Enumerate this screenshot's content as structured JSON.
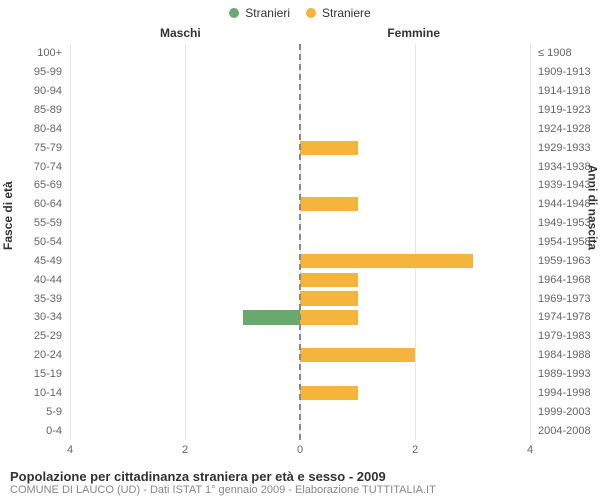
{
  "chart": {
    "type": "population-pyramid-bar",
    "background_color": "#ffffff",
    "grid_color": "#e6e6e6",
    "mid_line_color": "#888888",
    "tick_color": "#666666",
    "text_color": "#333333",
    "subtext_color": "#888888",
    "legend_fontsize": 12,
    "heading_fontsize": 12,
    "axis_title_fontsize": 12,
    "ylabel_fontsize": 11,
    "xtick_fontsize": 11,
    "caption_title_fontsize": 13,
    "caption_sub_fontsize": 11,
    "legend": [
      {
        "label": "Stranieri",
        "color": "#6aa96d"
      },
      {
        "label": "Straniere",
        "color": "#f5b43c"
      }
    ],
    "column_headings": {
      "left": "Maschi",
      "right": "Femmine"
    },
    "axis_titles": {
      "left": "Fasce di età",
      "right": "Anni di nascita"
    },
    "x_max": 4,
    "x_ticks_left": [
      4,
      2,
      0
    ],
    "x_ticks_right": [
      2,
      4
    ],
    "rows": [
      {
        "age": "100+",
        "birth": "≤ 1908",
        "m": 0,
        "f": 0
      },
      {
        "age": "95-99",
        "birth": "1909-1913",
        "m": 0,
        "f": 0
      },
      {
        "age": "90-94",
        "birth": "1914-1918",
        "m": 0,
        "f": 0
      },
      {
        "age": "85-89",
        "birth": "1919-1923",
        "m": 0,
        "f": 0
      },
      {
        "age": "80-84",
        "birth": "1924-1928",
        "m": 0,
        "f": 0
      },
      {
        "age": "75-79",
        "birth": "1929-1933",
        "m": 0,
        "f": 1
      },
      {
        "age": "70-74",
        "birth": "1934-1938",
        "m": 0,
        "f": 0
      },
      {
        "age": "65-69",
        "birth": "1939-1943",
        "m": 0,
        "f": 0
      },
      {
        "age": "60-64",
        "birth": "1944-1948",
        "m": 0,
        "f": 1
      },
      {
        "age": "55-59",
        "birth": "1949-1953",
        "m": 0,
        "f": 0
      },
      {
        "age": "50-54",
        "birth": "1954-1958",
        "m": 0,
        "f": 0
      },
      {
        "age": "45-49",
        "birth": "1959-1963",
        "m": 0,
        "f": 3
      },
      {
        "age": "40-44",
        "birth": "1964-1968",
        "m": 0,
        "f": 1
      },
      {
        "age": "35-39",
        "birth": "1969-1973",
        "m": 0,
        "f": 1
      },
      {
        "age": "30-34",
        "birth": "1974-1978",
        "m": 1,
        "f": 1
      },
      {
        "age": "25-29",
        "birth": "1979-1983",
        "m": 0,
        "f": 0
      },
      {
        "age": "20-24",
        "birth": "1984-1988",
        "m": 0,
        "f": 2
      },
      {
        "age": "15-19",
        "birth": "1989-1993",
        "m": 0,
        "f": 0
      },
      {
        "age": "10-14",
        "birth": "1994-1998",
        "m": 0,
        "f": 1
      },
      {
        "age": "5-9",
        "birth": "1999-2003",
        "m": 0,
        "f": 0
      },
      {
        "age": "0-4",
        "birth": "2004-2008",
        "m": 0,
        "f": 0
      }
    ],
    "caption": {
      "title": "Popolazione per cittadinanza straniera per età e sesso - 2009",
      "sub": "COMUNE DI LAUCO (UD) - Dati ISTAT 1° gennaio 2009 - Elaborazione TUTTITALIA.IT"
    }
  }
}
